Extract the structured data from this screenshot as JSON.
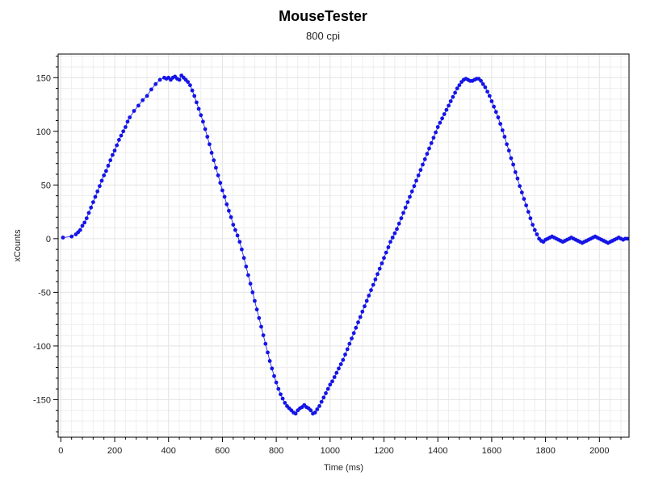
{
  "chart_data": {
    "type": "scatter",
    "title": "MouseTester",
    "subtitle": "800 cpi",
    "xlabel": "Time (ms)",
    "ylabel": "xCounts",
    "xlim": [
      -10,
      2110
    ],
    "ylim": [
      -185,
      172
    ],
    "x_ticks": [
      0,
      200,
      400,
      600,
      800,
      1000,
      1200,
      1400,
      1600,
      1800,
      2000
    ],
    "y_ticks": [
      150,
      100,
      50,
      0,
      -50,
      -100,
      -150
    ],
    "grid": true,
    "legend": "none",
    "colors": {
      "series": "#1414e6",
      "grid": "#e6e6e6",
      "axis": "#000000"
    },
    "series": [
      {
        "points": [
          [
            8,
            1
          ],
          [
            40,
            2
          ],
          [
            56,
            4
          ],
          [
            64,
            6
          ],
          [
            72,
            8
          ],
          [
            80,
            12
          ],
          [
            88,
            15
          ],
          [
            96,
            19
          ],
          [
            104,
            24
          ],
          [
            112,
            29
          ],
          [
            120,
            34
          ],
          [
            128,
            39
          ],
          [
            136,
            44
          ],
          [
            144,
            49
          ],
          [
            152,
            54
          ],
          [
            160,
            59
          ],
          [
            168,
            63
          ],
          [
            176,
            68
          ],
          [
            184,
            73
          ],
          [
            192,
            78
          ],
          [
            200,
            82
          ],
          [
            208,
            87
          ],
          [
            216,
            92
          ],
          [
            224,
            96
          ],
          [
            232,
            100
          ],
          [
            240,
            104
          ],
          [
            248,
            109
          ],
          [
            256,
            113
          ],
          [
            272,
            119
          ],
          [
            288,
            124
          ],
          [
            304,
            129
          ],
          [
            320,
            133
          ],
          [
            336,
            139
          ],
          [
            352,
            144
          ],
          [
            368,
            148
          ],
          [
            384,
            150
          ],
          [
            392,
            149
          ],
          [
            400,
            150
          ],
          [
            408,
            148
          ],
          [
            416,
            150
          ],
          [
            424,
            151
          ],
          [
            432,
            149
          ],
          [
            440,
            148
          ],
          [
            448,
            152
          ],
          [
            456,
            150
          ],
          [
            464,
            148
          ],
          [
            472,
            146
          ],
          [
            480,
            143
          ],
          [
            488,
            138
          ],
          [
            496,
            133
          ],
          [
            504,
            127
          ],
          [
            512,
            121
          ],
          [
            520,
            115
          ],
          [
            528,
            109
          ],
          [
            536,
            102
          ],
          [
            544,
            95
          ],
          [
            552,
            88
          ],
          [
            560,
            80
          ],
          [
            568,
            73
          ],
          [
            576,
            66
          ],
          [
            584,
            59
          ],
          [
            592,
            52
          ],
          [
            600,
            45
          ],
          [
            608,
            39
          ],
          [
            616,
            32
          ],
          [
            624,
            26
          ],
          [
            632,
            20
          ],
          [
            640,
            13
          ],
          [
            648,
            8
          ],
          [
            656,
            3
          ],
          [
            664,
            -3
          ],
          [
            672,
            -10
          ],
          [
            680,
            -18
          ],
          [
            688,
            -26
          ],
          [
            696,
            -34
          ],
          [
            704,
            -42
          ],
          [
            712,
            -50
          ],
          [
            720,
            -58
          ],
          [
            728,
            -66
          ],
          [
            736,
            -74
          ],
          [
            744,
            -82
          ],
          [
            752,
            -90
          ],
          [
            760,
            -98
          ],
          [
            768,
            -106
          ],
          [
            776,
            -114
          ],
          [
            784,
            -121
          ],
          [
            792,
            -128
          ],
          [
            800,
            -134
          ],
          [
            808,
            -140
          ],
          [
            816,
            -145
          ],
          [
            824,
            -149
          ],
          [
            832,
            -153
          ],
          [
            840,
            -156
          ],
          [
            848,
            -158
          ],
          [
            856,
            -160
          ],
          [
            864,
            -162
          ],
          [
            872,
            -163
          ],
          [
            880,
            -160
          ],
          [
            888,
            -158
          ],
          [
            896,
            -157
          ],
          [
            904,
            -155
          ],
          [
            912,
            -157
          ],
          [
            920,
            -158
          ],
          [
            928,
            -160
          ],
          [
            936,
            -163
          ],
          [
            944,
            -162
          ],
          [
            952,
            -159
          ],
          [
            960,
            -156
          ],
          [
            968,
            -152
          ],
          [
            976,
            -148
          ],
          [
            984,
            -144
          ],
          [
            992,
            -140
          ],
          [
            1000,
            -136
          ],
          [
            1008,
            -133
          ],
          [
            1016,
            -129
          ],
          [
            1024,
            -125
          ],
          [
            1032,
            -121
          ],
          [
            1040,
            -117
          ],
          [
            1048,
            -113
          ],
          [
            1056,
            -108
          ],
          [
            1064,
            -103
          ],
          [
            1072,
            -98
          ],
          [
            1080,
            -93
          ],
          [
            1088,
            -88
          ],
          [
            1096,
            -83
          ],
          [
            1104,
            -78
          ],
          [
            1112,
            -73
          ],
          [
            1120,
            -68
          ],
          [
            1128,
            -63
          ],
          [
            1136,
            -58
          ],
          [
            1144,
            -53
          ],
          [
            1152,
            -48
          ],
          [
            1160,
            -43
          ],
          [
            1168,
            -38
          ],
          [
            1176,
            -33
          ],
          [
            1184,
            -28
          ],
          [
            1192,
            -23
          ],
          [
            1200,
            -18
          ],
          [
            1208,
            -13
          ],
          [
            1216,
            -8
          ],
          [
            1224,
            -3
          ],
          [
            1232,
            1
          ],
          [
            1240,
            5
          ],
          [
            1248,
            9
          ],
          [
            1256,
            14
          ],
          [
            1264,
            19
          ],
          [
            1272,
            24
          ],
          [
            1280,
            29
          ],
          [
            1288,
            34
          ],
          [
            1296,
            39
          ],
          [
            1304,
            44
          ],
          [
            1312,
            49
          ],
          [
            1320,
            54
          ],
          [
            1328,
            59
          ],
          [
            1336,
            64
          ],
          [
            1344,
            69
          ],
          [
            1352,
            74
          ],
          [
            1360,
            79
          ],
          [
            1368,
            84
          ],
          [
            1376,
            89
          ],
          [
            1384,
            94
          ],
          [
            1392,
            99
          ],
          [
            1400,
            104
          ],
          [
            1408,
            108
          ],
          [
            1416,
            112
          ],
          [
            1424,
            116
          ],
          [
            1432,
            120
          ],
          [
            1440,
            124
          ],
          [
            1448,
            128
          ],
          [
            1456,
            132
          ],
          [
            1464,
            136
          ],
          [
            1472,
            140
          ],
          [
            1480,
            143
          ],
          [
            1488,
            146
          ],
          [
            1496,
            148
          ],
          [
            1504,
            149
          ],
          [
            1512,
            148
          ],
          [
            1520,
            147
          ],
          [
            1528,
            147
          ],
          [
            1536,
            148
          ],
          [
            1544,
            149
          ],
          [
            1552,
            149
          ],
          [
            1560,
            147
          ],
          [
            1568,
            144
          ],
          [
            1576,
            141
          ],
          [
            1584,
            137
          ],
          [
            1592,
            133
          ],
          [
            1600,
            128
          ],
          [
            1608,
            123
          ],
          [
            1616,
            118
          ],
          [
            1624,
            113
          ],
          [
            1632,
            107
          ],
          [
            1640,
            101
          ],
          [
            1648,
            95
          ],
          [
            1656,
            88
          ],
          [
            1664,
            82
          ],
          [
            1672,
            75
          ],
          [
            1680,
            69
          ],
          [
            1688,
            62
          ],
          [
            1696,
            56
          ],
          [
            1704,
            49
          ],
          [
            1712,
            43
          ],
          [
            1720,
            37
          ],
          [
            1728,
            31
          ],
          [
            1736,
            25
          ],
          [
            1744,
            19
          ],
          [
            1752,
            13
          ],
          [
            1760,
            8
          ],
          [
            1768,
            4
          ],
          [
            1776,
            0
          ],
          [
            1784,
            -2
          ],
          [
            1792,
            -3
          ],
          [
            1800,
            -1
          ],
          [
            1808,
            0
          ],
          [
            1816,
            1
          ],
          [
            1824,
            2
          ],
          [
            1832,
            1
          ],
          [
            1840,
            0
          ],
          [
            1848,
            -1
          ],
          [
            1856,
            -2
          ],
          [
            1864,
            -3
          ],
          [
            1872,
            -2
          ],
          [
            1880,
            -1
          ],
          [
            1888,
            0
          ],
          [
            1896,
            1
          ],
          [
            1904,
            0
          ],
          [
            1912,
            -1
          ],
          [
            1920,
            -2
          ],
          [
            1928,
            -3
          ],
          [
            1936,
            -4
          ],
          [
            1944,
            -3
          ],
          [
            1952,
            -2
          ],
          [
            1960,
            -1
          ],
          [
            1968,
            0
          ],
          [
            1976,
            1
          ],
          [
            1984,
            2
          ],
          [
            1992,
            1
          ],
          [
            2000,
            0
          ],
          [
            2008,
            -1
          ],
          [
            2016,
            -2
          ],
          [
            2024,
            -3
          ],
          [
            2032,
            -4
          ],
          [
            2040,
            -3
          ],
          [
            2048,
            -2
          ],
          [
            2056,
            -1
          ],
          [
            2064,
            0
          ],
          [
            2072,
            1
          ],
          [
            2080,
            0
          ],
          [
            2088,
            -1
          ],
          [
            2096,
            0
          ],
          [
            2104,
            0
          ]
        ]
      }
    ]
  }
}
